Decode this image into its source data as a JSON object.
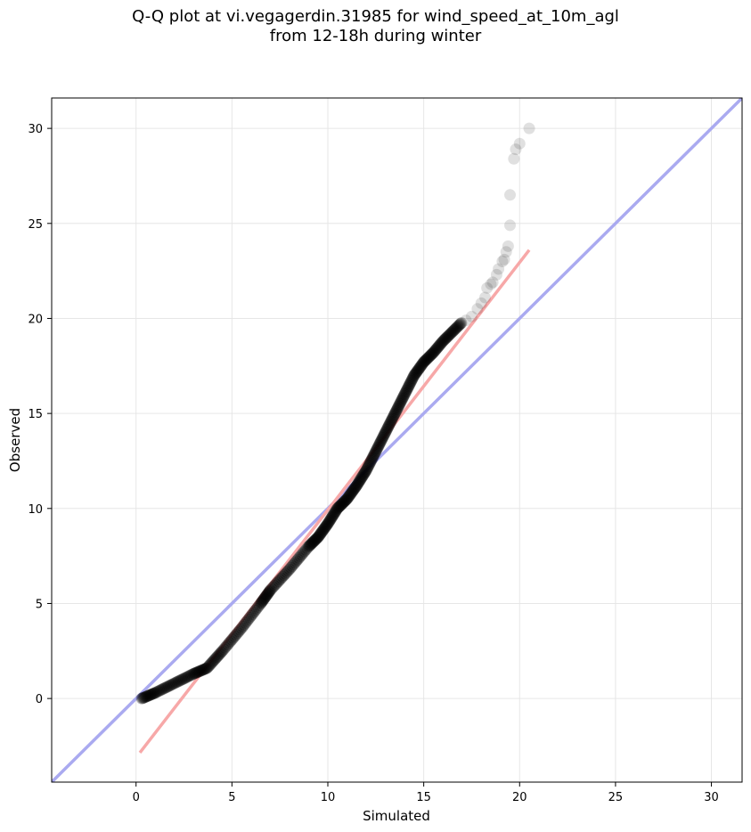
{
  "chart_data": {
    "type": "scatter",
    "title_line1": "Q-Q plot at vi.vegagerdin.31985 for wind_speed_at_10m_agl",
    "title_line2": "from 12-18h during winter",
    "xlabel": "Simulated",
    "ylabel": "Observed",
    "xlim": [
      -4.4,
      31.6
    ],
    "ylim": [
      -4.4,
      31.6
    ],
    "xticks": [
      0,
      5,
      10,
      15,
      20,
      25,
      30
    ],
    "yticks": [
      0,
      5,
      10,
      15,
      20,
      25,
      30
    ],
    "xtick_labels": [
      "0",
      "5",
      "10",
      "15",
      "20",
      "25",
      "30"
    ],
    "ytick_labels": [
      "0",
      "5",
      "10",
      "15",
      "20",
      "25",
      "30"
    ],
    "grid": true,
    "identity_line": {
      "color": "#aaaaf0",
      "from": [
        -4.4,
        -4.4
      ],
      "to": [
        31.6,
        31.6
      ]
    },
    "fit_line": {
      "color": "#f7a8a8",
      "from": [
        0.2,
        -2.85
      ],
      "to": [
        20.5,
        23.6
      ]
    },
    "point_color": "#000000",
    "qq_curve": [
      [
        0.3,
        0.0
      ],
      [
        1.0,
        0.3
      ],
      [
        2.0,
        0.8
      ],
      [
        3.0,
        1.3
      ],
      [
        3.7,
        1.6
      ],
      [
        4.5,
        2.5
      ],
      [
        5.5,
        3.7
      ],
      [
        6.5,
        5.0
      ],
      [
        7.0,
        5.7
      ],
      [
        8.0,
        6.8
      ],
      [
        9.0,
        8.0
      ],
      [
        9.5,
        8.5
      ],
      [
        10.0,
        9.2
      ],
      [
        10.5,
        10.0
      ],
      [
        11.0,
        10.5
      ],
      [
        11.5,
        11.2
      ],
      [
        12.0,
        12.0
      ],
      [
        12.5,
        13.0
      ],
      [
        13.0,
        14.0
      ],
      [
        13.5,
        15.0
      ],
      [
        14.0,
        16.0
      ],
      [
        14.5,
        17.0
      ],
      [
        15.0,
        17.7
      ],
      [
        15.5,
        18.2
      ],
      [
        16.0,
        18.8
      ],
      [
        16.5,
        19.3
      ],
      [
        17.0,
        19.8
      ]
    ],
    "tail_points": [
      [
        17.2,
        19.9
      ],
      [
        17.5,
        20.1
      ],
      [
        17.8,
        20.5
      ],
      [
        18.0,
        20.8
      ],
      [
        18.2,
        21.1
      ],
      [
        18.3,
        21.6
      ],
      [
        18.5,
        21.8
      ],
      [
        18.6,
        21.9
      ],
      [
        18.8,
        22.3
      ],
      [
        18.9,
        22.6
      ],
      [
        19.1,
        23.0
      ],
      [
        19.2,
        23.1
      ],
      [
        19.3,
        23.5
      ],
      [
        19.4,
        23.8
      ],
      [
        19.5,
        24.9
      ],
      [
        19.5,
        26.5
      ],
      [
        19.7,
        28.4
      ],
      [
        19.8,
        28.9
      ],
      [
        20.0,
        29.2
      ],
      [
        20.5,
        30.0
      ]
    ]
  }
}
